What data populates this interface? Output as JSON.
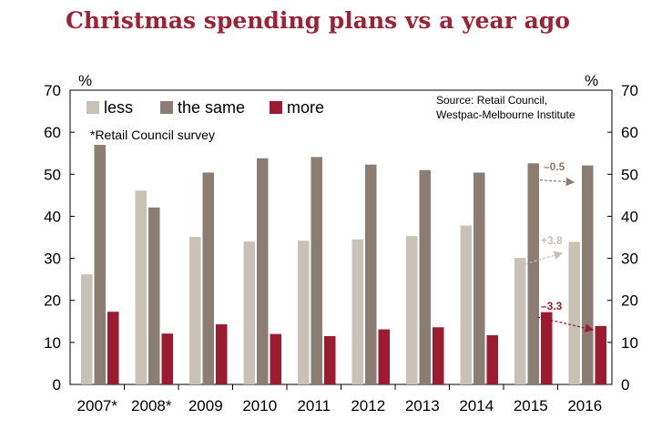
{
  "chart_data": {
    "type": "bar",
    "title": "Christmas spending plans vs a year ago",
    "y_unit_left": "%",
    "y_unit_right": "%",
    "ylim": [
      0,
      70
    ],
    "yticks": [
      0,
      10,
      20,
      30,
      40,
      50,
      60,
      70
    ],
    "categories": [
      "2007*",
      "2008*",
      "2009",
      "2010",
      "2011",
      "2012",
      "2013",
      "2014",
      "2015",
      "2016"
    ],
    "series": [
      {
        "name": "less",
        "color": "#c9c1b6",
        "values": [
          26.2,
          46.1,
          35.1,
          34.0,
          34.2,
          34.5,
          35.3,
          37.8,
          30.1,
          33.9
        ]
      },
      {
        "name": "the same",
        "color": "#8b7d72",
        "values": [
          57.0,
          42.1,
          50.4,
          53.8,
          54.1,
          52.3,
          51.0,
          50.4,
          52.6,
          52.1
        ]
      },
      {
        "name": "more",
        "color": "#9b1b30",
        "values": [
          17.3,
          12.1,
          14.3,
          12.0,
          11.5,
          13.1,
          13.6,
          11.7,
          17.2,
          13.9
        ]
      }
    ],
    "note": "*Retail Council survey",
    "source_lines": [
      "Source: Retail Council,",
      "Westpac-Melbourne Institute"
    ],
    "legend_position": "top-left",
    "grid": false,
    "annotations": [
      {
        "label": "–0.5",
        "series": "the same",
        "color": "#8b7d72"
      },
      {
        "label": "+3.8",
        "series": "less",
        "color": "#c9c1b6"
      },
      {
        "label": "–3.3",
        "series": "more",
        "color": "#9b1b30"
      }
    ]
  }
}
